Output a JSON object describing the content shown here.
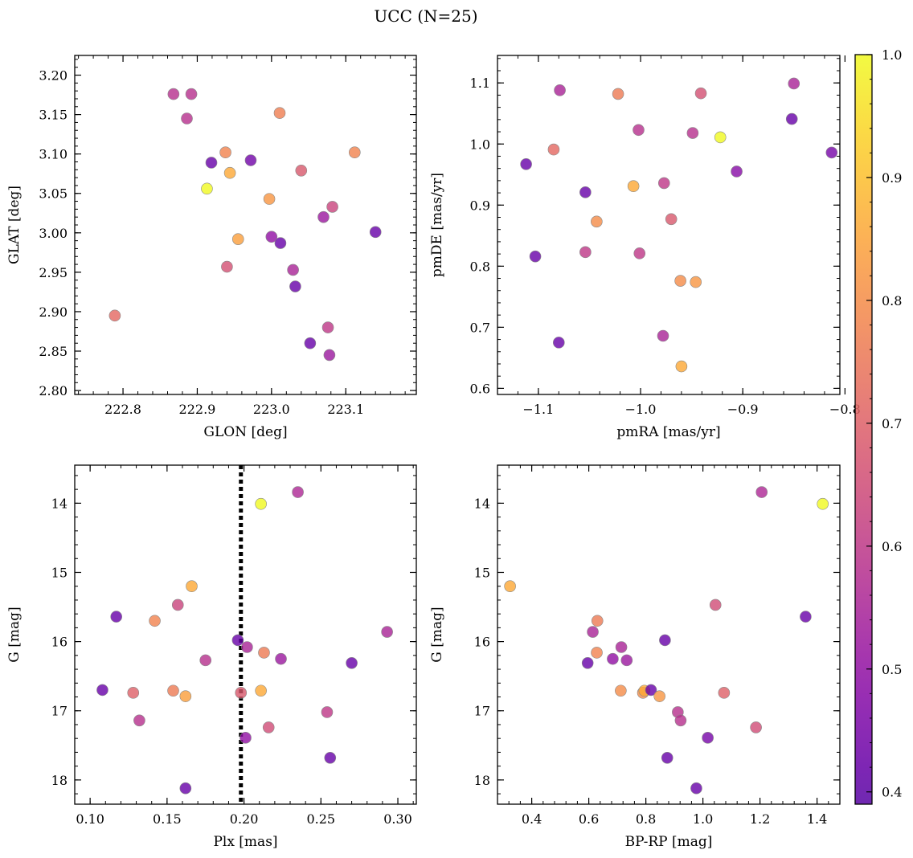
{
  "title": "UCC (N=25)",
  "colormap": {
    "name": "plasma",
    "range": [
      0.39,
      1.0
    ],
    "ticks": [
      0.4,
      0.5,
      0.6,
      0.7,
      0.8,
      0.9,
      1.0
    ],
    "tick_labels": [
      "0.4",
      "0.5",
      "0.6",
      "0.7",
      "0.8",
      "0.9",
      "1.0"
    ]
  },
  "chart_data": [
    {
      "type": "scatter",
      "id": "glon-glat",
      "xlabel": "GLON [deg]",
      "ylabel": "GLAT [deg]",
      "xlim": [
        222.735,
        223.195
      ],
      "ylim": [
        2.795,
        3.225
      ],
      "y_inverted": false,
      "xticks": [
        222.8,
        222.9,
        223.0,
        223.1
      ],
      "xtick_labels": [
        "222.8",
        "222.9",
        "223.0",
        "223.1"
      ],
      "yticks": [
        2.8,
        2.85,
        2.9,
        2.95,
        3.0,
        3.05,
        3.1,
        3.15,
        3.2
      ],
      "ytick_labels": [
        "2.80",
        "2.85",
        "2.90",
        "2.95",
        "3.00",
        "3.05",
        "3.10",
        "3.15",
        "3.20"
      ],
      "x": [
        222.789,
        222.868,
        222.886,
        222.892,
        222.938,
        222.94,
        222.919,
        222.913,
        222.955,
        222.944,
        222.972,
        222.997,
        223.011,
        223.0,
        223.012,
        223.029,
        223.04,
        223.032,
        223.052,
        223.07,
        223.076,
        223.078,
        223.082,
        223.112,
        223.14
      ],
      "y": [
        2.895,
        3.176,
        3.145,
        3.176,
        3.102,
        2.957,
        3.089,
        3.056,
        2.992,
        3.076,
        3.092,
        3.043,
        3.152,
        2.995,
        2.987,
        2.953,
        3.079,
        2.932,
        2.86,
        3.02,
        2.88,
        2.845,
        3.033,
        3.102,
        3.001
      ],
      "c": [
        0.72,
        0.58,
        0.58,
        0.58,
        0.78,
        0.66,
        0.42,
        1.0,
        0.84,
        0.86,
        0.44,
        0.82,
        0.77,
        0.5,
        0.42,
        0.55,
        0.68,
        0.42,
        0.42,
        0.52,
        0.6,
        0.52,
        0.63,
        0.78,
        0.42
      ]
    },
    {
      "type": "scatter",
      "id": "pmra-pmde",
      "xlabel": "pmRA [mas/yr]",
      "ylabel": "pmDE [mas/yr]",
      "xlim": [
        -1.14,
        -0.805
      ],
      "ylim": [
        0.59,
        1.145
      ],
      "y_inverted": false,
      "xticks": [
        -1.1,
        -1.0,
        -0.9,
        -0.8
      ],
      "xtick_labels": [
        "−1.1",
        "−1.0",
        "−0.9",
        "−0.8"
      ],
      "yticks": [
        0.6,
        0.7,
        0.8,
        0.9,
        1.0,
        1.1
      ],
      "ytick_labels": [
        "0.6",
        "0.7",
        "0.8",
        "0.9",
        "1.0",
        "1.1"
      ],
      "x": [
        -1.112,
        -1.103,
        -1.085,
        -1.079,
        -1.08,
        -1.054,
        -1.054,
        -1.043,
        -1.022,
        -1.007,
        -1.002,
        -1.001,
        -0.978,
        -0.977,
        -0.97,
        -0.961,
        -0.96,
        -0.949,
        -0.946,
        -0.941,
        -0.922,
        -0.906,
        -0.852,
        -0.85,
        -0.813
      ],
      "y": [
        0.967,
        0.816,
        0.991,
        1.088,
        0.675,
        0.921,
        0.823,
        0.873,
        1.082,
        0.931,
        1.023,
        0.821,
        0.686,
        0.936,
        0.877,
        0.776,
        0.636,
        1.018,
        0.774,
        1.083,
        1.011,
        0.955,
        1.041,
        1.099,
        0.986
      ],
      "c": [
        0.42,
        0.42,
        0.72,
        0.55,
        0.42,
        0.42,
        0.6,
        0.8,
        0.76,
        0.86,
        0.58,
        0.6,
        0.55,
        0.6,
        0.68,
        0.8,
        0.86,
        0.58,
        0.82,
        0.66,
        1.0,
        0.48,
        0.42,
        0.55,
        0.45
      ]
    },
    {
      "type": "scatter",
      "id": "plx-g",
      "xlabel": "Plx [mas]",
      "ylabel": "G [mag]",
      "xlim": [
        0.09,
        0.312
      ],
      "ylim": [
        18.35,
        13.45
      ],
      "y_inverted": true,
      "vline": 0.198,
      "xticks": [
        0.1,
        0.15,
        0.2,
        0.25,
        0.3
      ],
      "xtick_labels": [
        "0.10",
        "0.15",
        "0.20",
        "0.25",
        "0.30"
      ],
      "yticks": [
        14,
        15,
        16,
        17,
        18
      ],
      "ytick_labels": [
        "14",
        "15",
        "16",
        "17",
        "18"
      ],
      "x": [
        0.108,
        0.117,
        0.128,
        0.132,
        0.142,
        0.154,
        0.157,
        0.162,
        0.162,
        0.166,
        0.175,
        0.196,
        0.198,
        0.201,
        0.202,
        0.211,
        0.211,
        0.213,
        0.216,
        0.224,
        0.235,
        0.254,
        0.256,
        0.27,
        0.293
      ],
      "y": [
        16.7,
        15.64,
        16.74,
        17.14,
        15.7,
        16.71,
        15.47,
        16.79,
        18.12,
        15.2,
        16.27,
        15.98,
        16.74,
        17.39,
        16.08,
        16.71,
        14.01,
        16.16,
        17.24,
        16.25,
        13.84,
        17.02,
        17.68,
        16.31,
        15.86
      ],
      "c": [
        0.42,
        0.42,
        0.7,
        0.58,
        0.78,
        0.76,
        0.63,
        0.84,
        0.42,
        0.86,
        0.58,
        0.42,
        0.68,
        0.5,
        0.55,
        0.86,
        1.0,
        0.76,
        0.65,
        0.52,
        0.56,
        0.6,
        0.42,
        0.42,
        0.55
      ]
    },
    {
      "type": "scatter",
      "id": "bprp-g",
      "xlabel": "BP-RP [mag]",
      "ylabel": "G [mag]",
      "xlim": [
        0.28,
        1.48
      ],
      "ylim": [
        18.35,
        13.45
      ],
      "y_inverted": true,
      "xticks": [
        0.4,
        0.6,
        0.8,
        1.0,
        1.2,
        1.4
      ],
      "xtick_labels": [
        "0.4",
        "0.6",
        "0.8",
        "1.0",
        "1.2",
        "1.4"
      ],
      "yticks": [
        14,
        15,
        16,
        17,
        18
      ],
      "ytick_labels": [
        "14",
        "15",
        "16",
        "17",
        "18"
      ],
      "x": [
        0.324,
        0.596,
        0.614,
        0.628,
        0.63,
        0.684,
        0.712,
        0.714,
        0.733,
        0.79,
        0.795,
        0.818,
        0.848,
        0.867,
        0.875,
        0.912,
        0.922,
        0.977,
        1.017,
        1.044,
        1.074,
        1.186,
        1.206,
        1.36,
        1.42
      ],
      "y": [
        15.2,
        16.31,
        15.86,
        16.16,
        15.7,
        16.25,
        16.71,
        16.08,
        16.27,
        16.74,
        16.71,
        16.7,
        16.79,
        15.98,
        17.68,
        17.02,
        17.14,
        18.12,
        17.39,
        15.47,
        16.74,
        17.24,
        13.84,
        15.64,
        14.01
      ],
      "c": [
        0.86,
        0.42,
        0.55,
        0.78,
        0.76,
        0.5,
        0.8,
        0.55,
        0.52,
        0.8,
        0.86,
        0.42,
        0.82,
        0.42,
        0.42,
        0.58,
        0.58,
        0.42,
        0.45,
        0.65,
        0.7,
        0.65,
        0.56,
        0.42,
        1.0
      ]
    }
  ]
}
